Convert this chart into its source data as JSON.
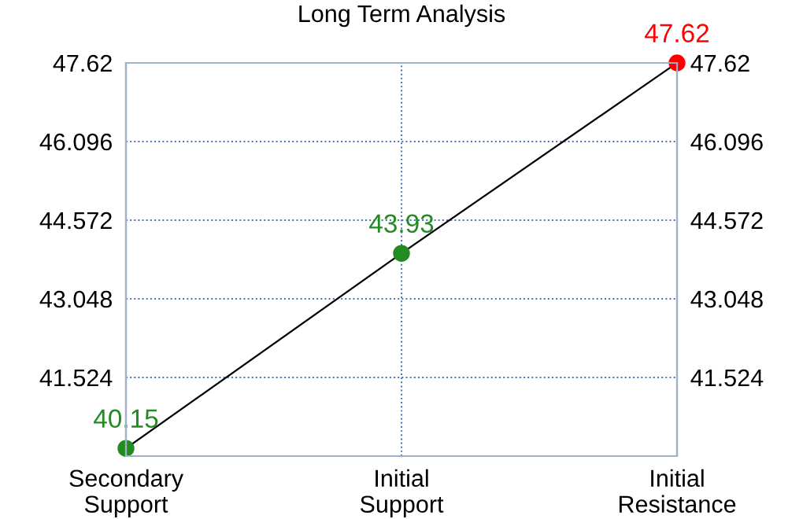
{
  "chart_data": {
    "type": "line",
    "title": "Long Term Analysis",
    "categories": [
      "Secondary\nSupport",
      "Initial\nSupport",
      "Initial\nResistance"
    ],
    "series": [
      {
        "color": "#000000",
        "colors": [
          "#228b22",
          "#228b22",
          "#ff0000"
        ],
        "values": [
          40.15,
          43.93,
          47.62
        ]
      }
    ],
    "ylim": [
      40,
      47.62
    ],
    "yticks": [
      41.524,
      43.048,
      44.572,
      46.096,
      47.62
    ],
    "y2lim": [
      40,
      47.62
    ],
    "y2ticks": [
      41.524,
      43.048,
      44.572,
      46.096,
      47.62
    ],
    "grid": true,
    "marker": "circle",
    "data_labels": true
  }
}
